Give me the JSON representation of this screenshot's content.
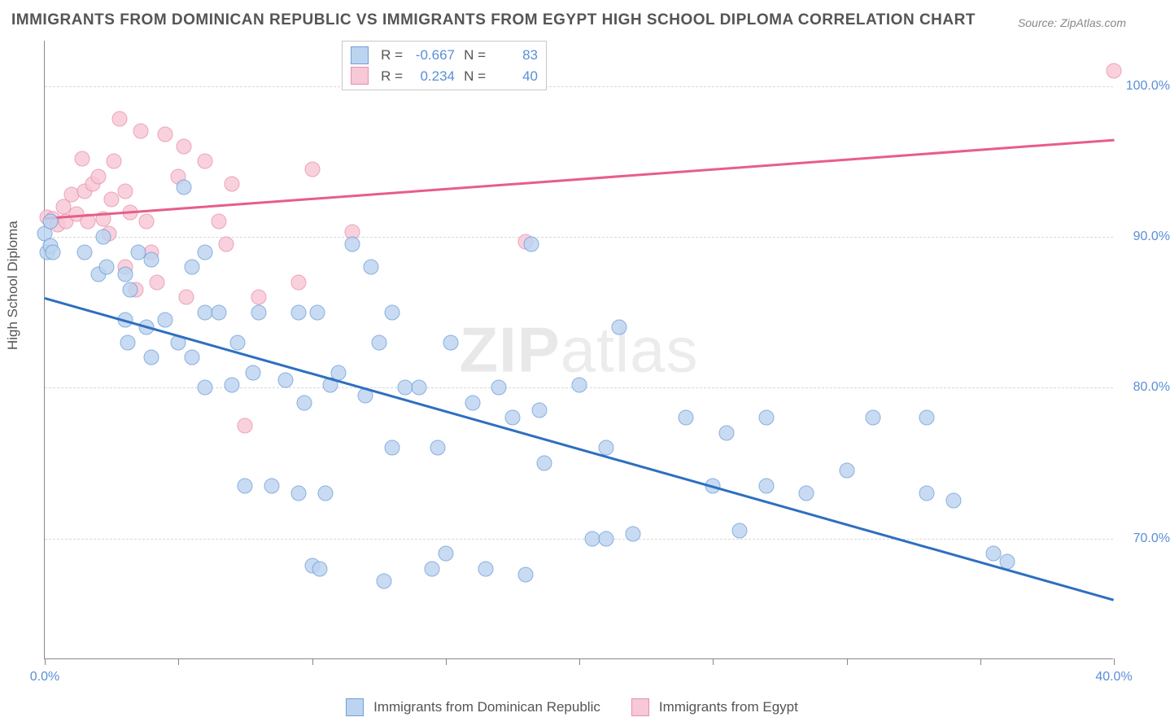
{
  "title": "IMMIGRANTS FROM DOMINICAN REPUBLIC VS IMMIGRANTS FROM EGYPT HIGH SCHOOL DIPLOMA CORRELATION CHART",
  "source": "Source: ZipAtlas.com",
  "watermark_a": "ZIP",
  "watermark_b": "atlas",
  "y_axis_title": "High School Diploma",
  "x_range": [
    0,
    40
  ],
  "y_range": [
    62,
    103
  ],
  "y_ticks": [
    70,
    80,
    90,
    100
  ],
  "y_tick_labels": [
    "70.0%",
    "80.0%",
    "90.0%",
    "100.0%"
  ],
  "x_ticks": [
    0,
    5,
    10,
    15,
    20,
    25,
    30,
    35,
    40
  ],
  "x_tick_labels_shown": {
    "0": "0.0%",
    "40": "40.0%"
  },
  "series": {
    "blue": {
      "label": "Immigrants from Dominican Republic",
      "fill": "#bcd4f0",
      "stroke": "#6f9fd8",
      "line_color": "#2e6fc1",
      "r_value": "-0.667",
      "n_value": "83",
      "trend": {
        "x1": 0,
        "y1": 86,
        "x2": 40,
        "y2": 66
      },
      "points": [
        [
          0.0,
          90.2
        ],
        [
          0.1,
          89.0
        ],
        [
          0.2,
          91.0
        ],
        [
          0.2,
          89.4
        ],
        [
          0.3,
          89.0
        ],
        [
          1.5,
          89.0
        ],
        [
          2.0,
          87.5
        ],
        [
          2.2,
          90.0
        ],
        [
          2.3,
          88.0
        ],
        [
          3.0,
          87.5
        ],
        [
          3.0,
          84.5
        ],
        [
          3.1,
          83.0
        ],
        [
          3.2,
          86.5
        ],
        [
          3.8,
          84.0
        ],
        [
          4.0,
          82.0
        ],
        [
          3.5,
          89.0
        ],
        [
          4.0,
          88.5
        ],
        [
          4.5,
          84.5
        ],
        [
          5.0,
          83.0
        ],
        [
          5.2,
          93.3
        ],
        [
          5.5,
          88.0
        ],
        [
          5.5,
          82.0
        ],
        [
          6.0,
          89.0
        ],
        [
          6.0,
          85.0
        ],
        [
          6.0,
          80.0
        ],
        [
          6.5,
          85.0
        ],
        [
          7.0,
          80.2
        ],
        [
          7.2,
          83.0
        ],
        [
          7.5,
          73.5
        ],
        [
          7.8,
          81.0
        ],
        [
          8.0,
          85.0
        ],
        [
          8.5,
          73.5
        ],
        [
          9.0,
          80.5
        ],
        [
          9.5,
          85.0
        ],
        [
          9.5,
          73.0
        ],
        [
          9.7,
          79.0
        ],
        [
          10.0,
          68.2
        ],
        [
          10.2,
          85.0
        ],
        [
          10.3,
          68.0
        ],
        [
          10.5,
          73.0
        ],
        [
          10.7,
          80.2
        ],
        [
          11.0,
          81.0
        ],
        [
          11.5,
          89.5
        ],
        [
          12.0,
          79.5
        ],
        [
          12.2,
          88.0
        ],
        [
          12.5,
          83.0
        ],
        [
          12.7,
          67.2
        ],
        [
          13.0,
          85.0
        ],
        [
          13.0,
          76.0
        ],
        [
          13.5,
          80.0
        ],
        [
          14.0,
          80.0
        ],
        [
          14.5,
          68.0
        ],
        [
          14.7,
          76.0
        ],
        [
          15.0,
          69.0
        ],
        [
          15.2,
          83.0
        ],
        [
          16.0,
          79.0
        ],
        [
          16.5,
          68.0
        ],
        [
          17.0,
          80.0
        ],
        [
          17.5,
          78.0
        ],
        [
          18.0,
          67.6
        ],
        [
          18.2,
          89.5
        ],
        [
          18.5,
          78.5
        ],
        [
          18.7,
          75.0
        ],
        [
          20.0,
          80.2
        ],
        [
          20.5,
          70.0
        ],
        [
          21.0,
          70.0
        ],
        [
          21.0,
          76.0
        ],
        [
          21.5,
          84.0
        ],
        [
          22.0,
          70.3
        ],
        [
          24.0,
          78.0
        ],
        [
          25.0,
          73.5
        ],
        [
          25.5,
          77.0
        ],
        [
          26.0,
          70.5
        ],
        [
          27.0,
          78.0
        ],
        [
          27.0,
          73.5
        ],
        [
          28.5,
          73.0
        ],
        [
          30.0,
          74.5
        ],
        [
          31.0,
          78.0
        ],
        [
          33.0,
          78.0
        ],
        [
          33.0,
          73.0
        ],
        [
          34.0,
          72.5
        ],
        [
          35.5,
          69.0
        ],
        [
          36.0,
          68.5
        ]
      ]
    },
    "pink": {
      "label": "Immigrants from Egypt",
      "fill": "#f7c8d6",
      "stroke": "#e98fab",
      "line_color": "#e85d8a",
      "r_value": "0.234",
      "n_value": "40",
      "trend": {
        "x1": 0,
        "y1": 91.3,
        "x2": 40,
        "y2": 96.5
      },
      "points": [
        [
          0.1,
          91.3
        ],
        [
          0.3,
          91.2
        ],
        [
          0.5,
          90.8
        ],
        [
          0.7,
          92.0
        ],
        [
          0.8,
          91.0
        ],
        [
          1.0,
          92.8
        ],
        [
          1.2,
          91.5
        ],
        [
          1.4,
          95.2
        ],
        [
          1.5,
          93.0
        ],
        [
          1.6,
          91.0
        ],
        [
          1.8,
          93.5
        ],
        [
          2.0,
          94.0
        ],
        [
          2.2,
          91.2
        ],
        [
          2.4,
          90.2
        ],
        [
          2.6,
          95.0
        ],
        [
          2.5,
          92.5
        ],
        [
          2.8,
          97.8
        ],
        [
          3.0,
          88.0
        ],
        [
          3.0,
          93.0
        ],
        [
          3.2,
          91.6
        ],
        [
          3.4,
          86.5
        ],
        [
          3.6,
          97.0
        ],
        [
          3.8,
          91.0
        ],
        [
          4.0,
          89.0
        ],
        [
          4.2,
          87.0
        ],
        [
          4.5,
          96.8
        ],
        [
          5.0,
          94.0
        ],
        [
          5.2,
          96.0
        ],
        [
          5.3,
          86.0
        ],
        [
          6.0,
          95.0
        ],
        [
          6.5,
          91.0
        ],
        [
          6.8,
          89.5
        ],
        [
          7.0,
          93.5
        ],
        [
          7.5,
          77.5
        ],
        [
          8.0,
          86.0
        ],
        [
          9.5,
          87.0
        ],
        [
          10.0,
          94.5
        ],
        [
          11.5,
          90.3
        ],
        [
          18.0,
          89.7
        ],
        [
          40.0,
          101.0
        ]
      ]
    }
  },
  "stats_labels": {
    "r": "R =",
    "n": "N ="
  },
  "colors": {
    "value_text": "#5a8fd6",
    "grid": "#d8d8d8",
    "axis": "#888888"
  }
}
